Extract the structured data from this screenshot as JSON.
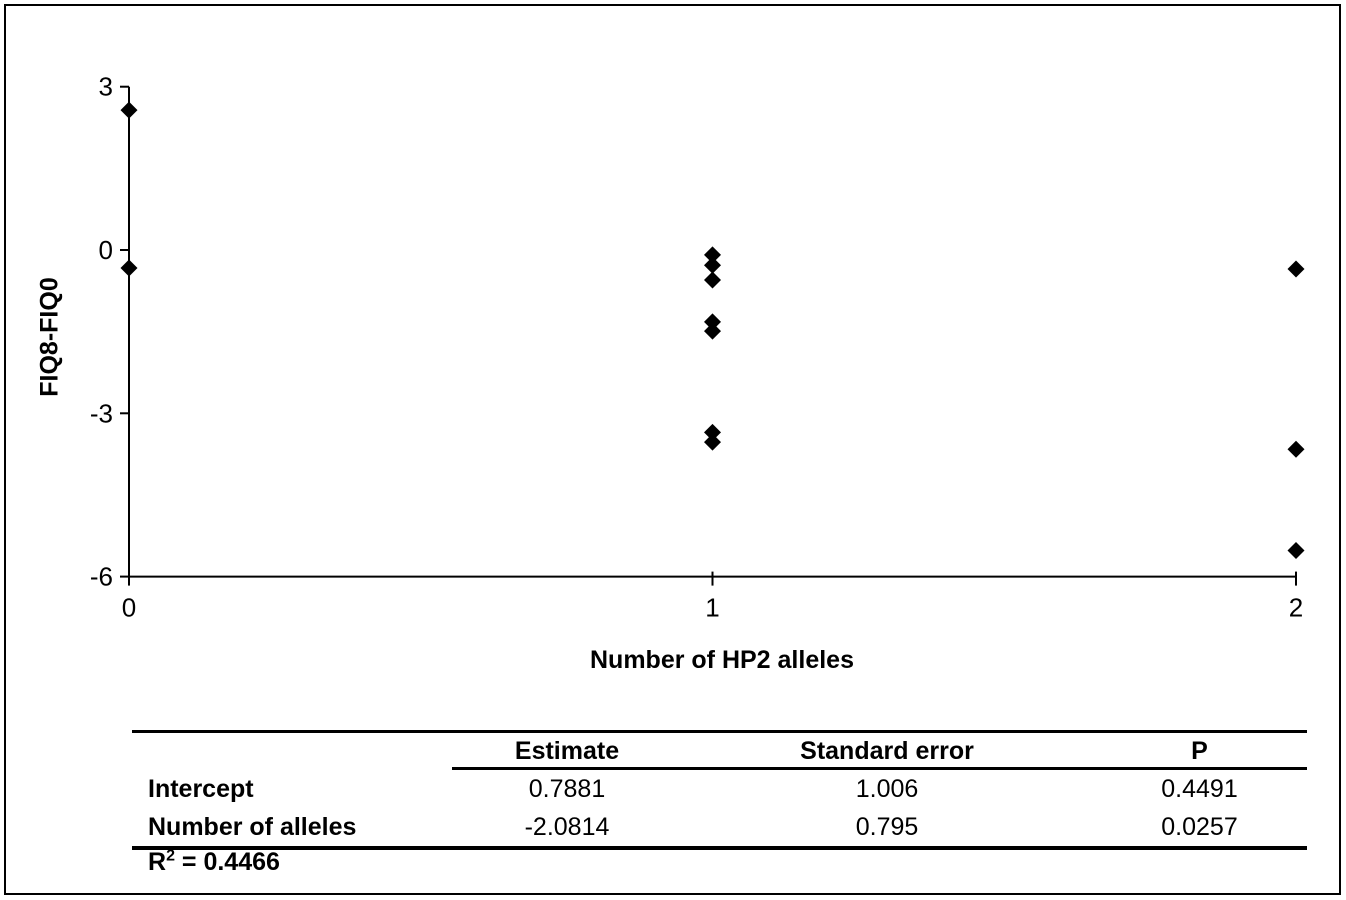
{
  "figure": {
    "background": "#ffffff",
    "border_color": "#000000"
  },
  "chart_data": {
    "type": "scatter",
    "title": "",
    "xlabel": "Number of HP2 alleles",
    "ylabel": "FIQ8-FIQ0",
    "xlim": [
      0,
      2
    ],
    "ylim": [
      -6,
      3
    ],
    "x_ticks": [
      0,
      1,
      2
    ],
    "y_ticks": [
      3,
      0,
      -3,
      -6
    ],
    "grid": false,
    "legend": false,
    "marker": "diamond",
    "marker_color": "#000000",
    "axis_color": "#000000",
    "points": [
      {
        "x": 0,
        "y": 2.57
      },
      {
        "x": 0,
        "y": -0.33
      },
      {
        "x": 1,
        "y": -0.09
      },
      {
        "x": 1,
        "y": -0.28
      },
      {
        "x": 1,
        "y": -0.55
      },
      {
        "x": 1,
        "y": -1.32
      },
      {
        "x": 1,
        "y": -1.49
      },
      {
        "x": 1,
        "y": -3.35
      },
      {
        "x": 1,
        "y": -3.53
      },
      {
        "x": 2,
        "y": -0.35
      },
      {
        "x": 2,
        "y": -3.66
      },
      {
        "x": 2,
        "y": -5.52
      }
    ]
  },
  "table": {
    "headers": [
      "",
      "Estimate",
      "Standard error",
      "P"
    ],
    "rows": [
      {
        "label": "Intercept",
        "estimate": "0.7881",
        "std_error": "1.006",
        "p": "0.4491"
      },
      {
        "label": "Number of alleles",
        "estimate": "-2.0814",
        "std_error": "0.795",
        "p": "0.0257"
      }
    ],
    "r_squared": {
      "base": "R",
      "sup": "2",
      "rest": " = 0.4466"
    }
  }
}
